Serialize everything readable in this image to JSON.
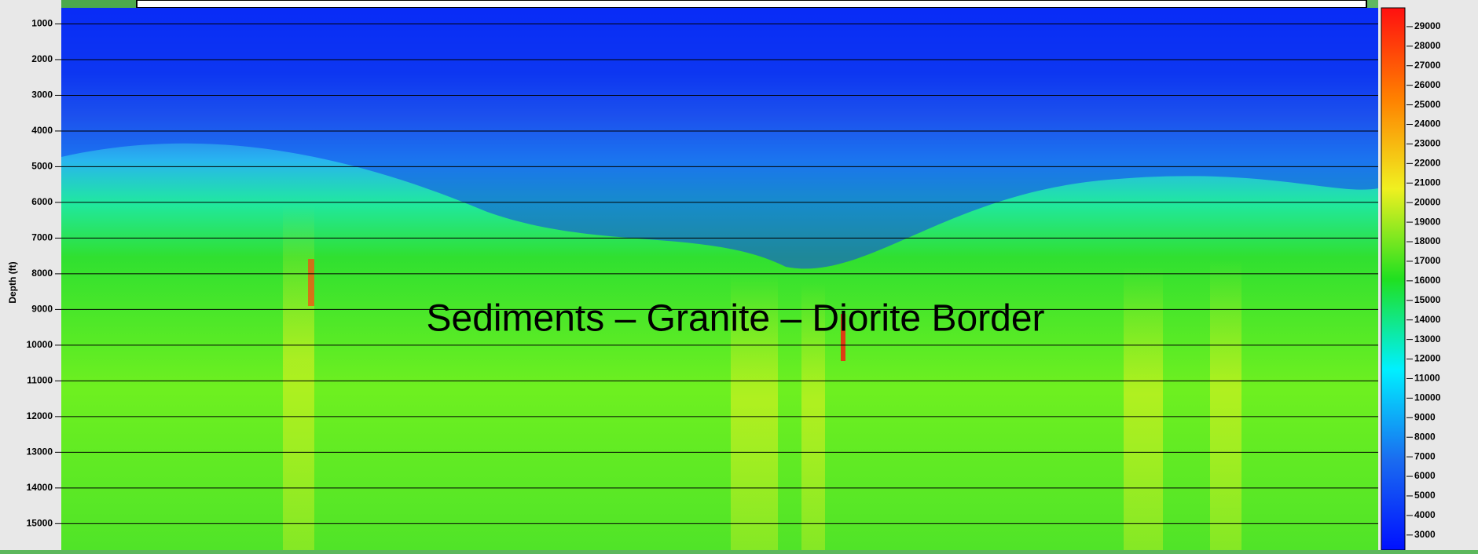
{
  "chart_data": {
    "type": "heatmap",
    "annotation": "Sediments – Granite – Diorite Border",
    "ylabel": "Depth (ft)",
    "ylim": [
      550,
      15740
    ],
    "yticks": [
      1000,
      2000,
      3000,
      4000,
      5000,
      6000,
      7000,
      8000,
      9000,
      10000,
      11000,
      12000,
      13000,
      14000,
      15000
    ],
    "y_inverted": true,
    "grid": true,
    "clim": [
      2230,
      29960
    ],
    "cticks": [
      3000,
      4000,
      5000,
      6000,
      7000,
      8000,
      9000,
      10000,
      11000,
      12000,
      13000,
      14000,
      15000,
      16000,
      17000,
      18000,
      19000,
      20000,
      21000,
      22000,
      23000,
      24000,
      25000,
      26000,
      27000,
      28000,
      29000
    ],
    "colormap": [
      "#0010ff",
      "#1a6cf0",
      "#00f0ff",
      "#20e020",
      "#f0f020",
      "#ff8000",
      "#ff1010"
    ]
  }
}
